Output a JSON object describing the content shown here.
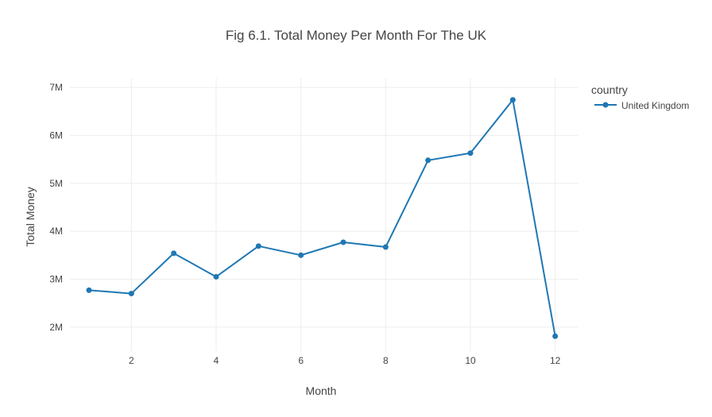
{
  "chart_data": {
    "type": "line",
    "title": "Fig 6.1. Total Money Per Month For The UK",
    "xlabel": "Month",
    "ylabel": "Total Money",
    "x_ticks": [
      2,
      4,
      6,
      8,
      10,
      12
    ],
    "x_tick_labels": [
      "2",
      "4",
      "6",
      "8",
      "10",
      "12"
    ],
    "y_ticks": [
      2000000,
      3000000,
      4000000,
      5000000,
      6000000,
      7000000
    ],
    "y_tick_labels": [
      "2M",
      "3M",
      "4M",
      "5M",
      "6M",
      "7M"
    ],
    "xlim": [
      0.55,
      12.55
    ],
    "ylim": [
      1500000,
      7200000
    ],
    "grid": true,
    "legend": {
      "title": "country",
      "placement": "top-right"
    },
    "series": [
      {
        "name": "United Kingdom",
        "color": "#1f77b4",
        "x": [
          1,
          2,
          3,
          4,
          5,
          6,
          7,
          8,
          9,
          10,
          11,
          12
        ],
        "values": [
          2770000,
          2700000,
          3540000,
          3050000,
          3690000,
          3500000,
          3770000,
          3670000,
          5480000,
          5630000,
          6740000,
          1810000
        ]
      }
    ]
  }
}
